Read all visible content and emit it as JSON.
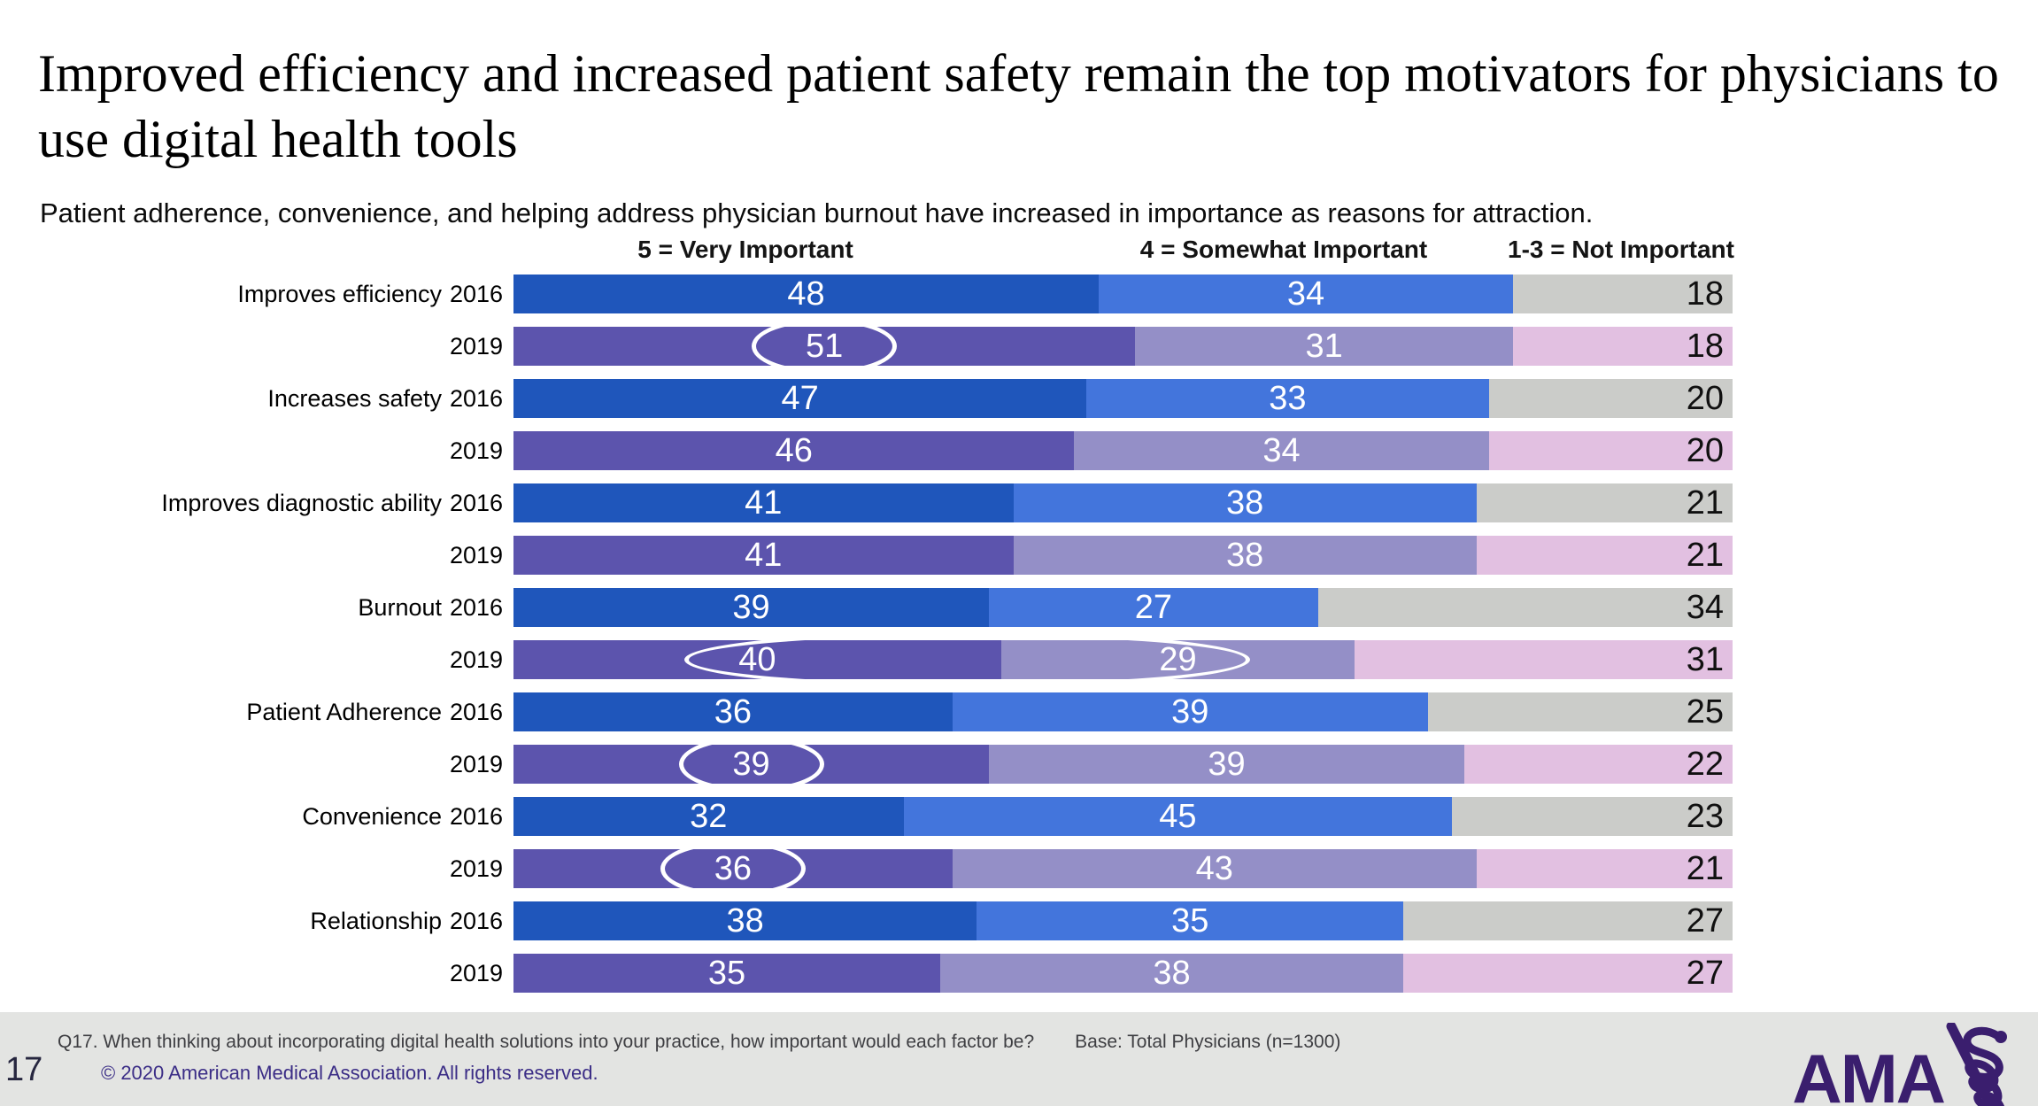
{
  "page": {
    "title": "Improved efficiency and increased patient safety remain the top motivators for physicians to use digital health tools",
    "subtitle": "Patient adherence, convenience, and helping address physician burnout have increased in importance as reasons for attraction."
  },
  "chart_data": {
    "type": "bar",
    "stacked": true,
    "orientation": "horizontal",
    "total_per_row": 100,
    "column_headers": [
      "5 = Very Important",
      "4 = Somewhat Important",
      "1-3 = Not Important"
    ],
    "legend_position": "top",
    "series_colors": {
      "2016": [
        "#1F56BB",
        "#4375DC",
        "#CBCCC9"
      ],
      "2019": [
        "#5C54AD",
        "#948FC7",
        "#E2C0E1"
      ]
    },
    "rows": [
      {
        "category": "Improves efficiency",
        "year": "2016",
        "values": [
          48,
          34,
          18
        ],
        "circle": null
      },
      {
        "category": "",
        "year": "2019",
        "values": [
          51,
          31,
          18
        ],
        "circle": [
          0,
          0
        ]
      },
      {
        "category": "Increases safety",
        "year": "2016",
        "values": [
          47,
          33,
          20
        ],
        "circle": null
      },
      {
        "category": "",
        "year": "2019",
        "values": [
          46,
          34,
          20
        ],
        "circle": null
      },
      {
        "category": "Improves diagnostic ability",
        "year": "2016",
        "values": [
          41,
          38,
          21
        ],
        "circle": null
      },
      {
        "category": "",
        "year": "2019",
        "values": [
          41,
          38,
          21
        ],
        "circle": null
      },
      {
        "category": "Burnout",
        "year": "2016",
        "values": [
          39,
          27,
          34
        ],
        "circle": null
      },
      {
        "category": "",
        "year": "2019",
        "values": [
          40,
          29,
          31
        ],
        "circle": [
          0,
          1
        ]
      },
      {
        "category": "Patient Adherence",
        "year": "2016",
        "values": [
          36,
          39,
          25
        ],
        "circle": null
      },
      {
        "category": "",
        "year": "2019",
        "values": [
          39,
          39,
          22
        ],
        "circle": [
          0,
          0
        ]
      },
      {
        "category": "Convenience",
        "year": "2016",
        "values": [
          32,
          45,
          23
        ],
        "circle": null
      },
      {
        "category": "",
        "year": "2019",
        "values": [
          36,
          43,
          21
        ],
        "circle": [
          0,
          0
        ]
      },
      {
        "category": "Relationship",
        "year": "2016",
        "values": [
          38,
          35,
          27
        ],
        "circle": null
      },
      {
        "category": "",
        "year": "2019",
        "values": [
          35,
          38,
          27
        ],
        "circle": null
      }
    ]
  },
  "footer": {
    "page_number": "17",
    "footnote": "Q17. When thinking about incorporating digital health solutions into your practice, how important would each factor be?",
    "base_note": "Base: Total Physicians (n=1300)",
    "copyright": "© 2020 American Medical Association. All rights reserved.",
    "logo_text": "AMA"
  },
  "colors": {
    "footer_background": "#E3E4E2",
    "logo_purple": "#3A1E6E",
    "copyright_purple": "#3B2D86",
    "annotation_circle": "#FFFFFF"
  }
}
